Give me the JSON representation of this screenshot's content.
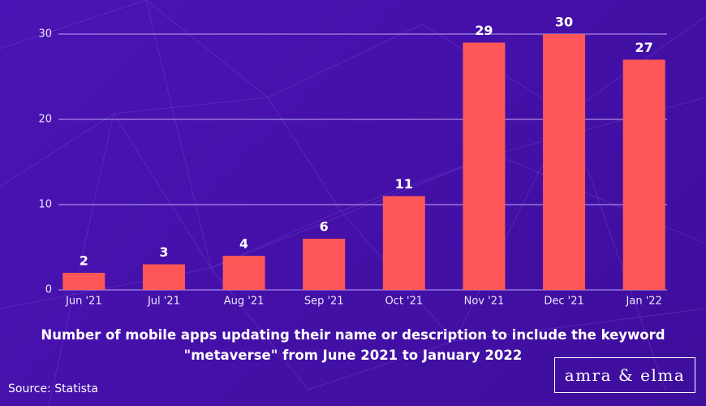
{
  "chart_data": {
    "type": "bar",
    "title": "Number of mobile apps updating their name or description to include the keyword \"metaverse\" from June 2021 to January 2022",
    "categories": [
      "Jun '21",
      "Jul '21",
      "Aug '21",
      "Sep '21",
      "Oct '21",
      "Nov '21",
      "Dec '21",
      "Jan '22"
    ],
    "values": [
      2,
      3,
      4,
      6,
      11,
      29,
      30,
      27
    ],
    "color": "#ff5757",
    "ylim": [
      0,
      30
    ],
    "yticks": [
      0,
      10,
      20,
      30
    ],
    "grid": true,
    "source": "Source: Statista",
    "logo": "amra & elma"
  }
}
